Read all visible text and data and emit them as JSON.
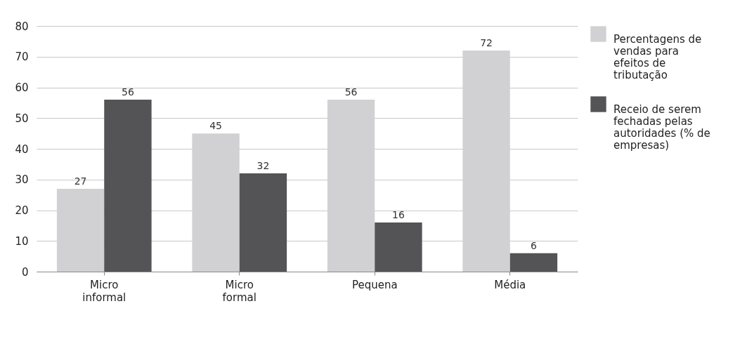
{
  "chart_data": {
    "type": "bar",
    "categories": [
      "Micro informal",
      "Micro formal",
      "Pequena",
      "Média"
    ],
    "series": [
      {
        "name": "Percentagens de vendas para efeitos de tributação",
        "color": "#d1d1d3",
        "values": [
          27,
          45,
          56,
          72
        ]
      },
      {
        "name": "Receio de serem fechadas pelas autoridades (% de empresas)",
        "color": "#545456",
        "values": [
          56,
          32,
          16,
          6
        ]
      }
    ],
    "ylim": [
      0,
      80
    ],
    "yticks": [
      0,
      10,
      20,
      30,
      40,
      50,
      60,
      70,
      80
    ],
    "grid": "y",
    "legend": "right",
    "data_labels": true
  }
}
